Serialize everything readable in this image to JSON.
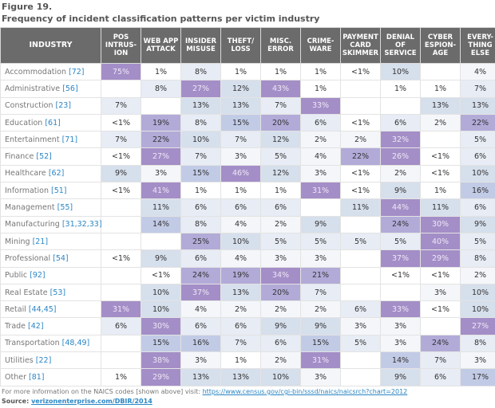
{
  "figure_label": "Figure 19.",
  "title": "Frequency of incident classification patterns per victim industry",
  "footnote_prefix": "For more information on the NAICS codes [shown above] visit: ",
  "footnote_link": "https://www.census.gov/cgi-bin/sssd/naics/naicsrch?chart=2012",
  "source_prefix": "Source: ",
  "source_link": "verizonenterprise.com/DBIR/2014",
  "colors": {
    "header": "#6b6b6b",
    "high": "#a48ec7",
    "mid": "#c2cbe6",
    "low": "#e7ecf5",
    "link": "#2b86c5"
  },
  "chart_data": {
    "type": "heatmap",
    "title": "Frequency of incident classification patterns per victim industry",
    "row_header": "INDUSTRY",
    "columns": [
      "POS INTRUS- ION",
      "WEB APP ATTACK",
      "INSIDER MISUSE",
      "THEFT/ LOSS",
      "MISC. ERROR",
      "CRIME- WARE",
      "PAYMENT CARD SKIMMER",
      "DENIAL OF SERVICE",
      "CYBER ESPION- AGE",
      "EVERY- THING ELSE"
    ],
    "rows": [
      {
        "industry": "Accommodation ",
        "code": "[72]",
        "values": [
          "75%",
          "1%",
          "8%",
          "1%",
          "1%",
          "1%",
          "<1%",
          "10%",
          "",
          "4%"
        ]
      },
      {
        "industry": "Administrative ",
        "code": "[56]",
        "values": [
          "",
          "8%",
          "27%",
          "12%",
          "43%",
          "1%",
          "",
          "1%",
          "1%",
          "7%"
        ]
      },
      {
        "industry": "Construction ",
        "code": "[23]",
        "values": [
          "7%",
          "",
          "13%",
          "13%",
          "7%",
          "33%",
          "",
          "",
          "13%",
          "13%"
        ]
      },
      {
        "industry": "Education ",
        "code": "[61]",
        "values": [
          "<1%",
          "19%",
          "8%",
          "15%",
          "20%",
          "6%",
          "<1%",
          "6%",
          "2%",
          "22%"
        ]
      },
      {
        "industry": "Entertainment ",
        "code": "[71]",
        "values": [
          "7%",
          "22%",
          "10%",
          "7%",
          "12%",
          "2%",
          "2%",
          "32%",
          "",
          "5%"
        ]
      },
      {
        "industry": "Finance ",
        "code": "[52]",
        "values": [
          "<1%",
          "27%",
          "7%",
          "3%",
          "5%",
          "4%",
          "22%",
          "26%",
          "<1%",
          "6%"
        ]
      },
      {
        "industry": "Healthcare ",
        "code": "[62]",
        "values": [
          "9%",
          "3%",
          "15%",
          "46%",
          "12%",
          "3%",
          "<1%",
          "2%",
          "<1%",
          "10%"
        ]
      },
      {
        "industry": "Information ",
        "code": "[51]",
        "values": [
          "<1%",
          "41%",
          "1%",
          "1%",
          "1%",
          "31%",
          "<1%",
          "9%",
          "1%",
          "16%"
        ]
      },
      {
        "industry": "Management ",
        "code": "[55]",
        "values": [
          "",
          "11%",
          "6%",
          "6%",
          "6%",
          "",
          "11%",
          "44%",
          "11%",
          "6%"
        ]
      },
      {
        "industry": "Manufacturing ",
        "code": "[31,32,33]",
        "values": [
          "",
          "14%",
          "8%",
          "4%",
          "2%",
          "9%",
          "",
          "24%",
          "30%",
          "9%"
        ]
      },
      {
        "industry": "Mining ",
        "code": "[21]",
        "values": [
          "",
          "",
          "25%",
          "10%",
          "5%",
          "5%",
          "5%",
          "5%",
          "40%",
          "5%"
        ]
      },
      {
        "industry": "Professional ",
        "code": "[54]",
        "values": [
          "<1%",
          "9%",
          "6%",
          "4%",
          "3%",
          "3%",
          "",
          "37%",
          "29%",
          "8%"
        ]
      },
      {
        "industry": "Public ",
        "code": "[92]",
        "values": [
          "",
          "<1%",
          "24%",
          "19%",
          "34%",
          "21%",
          "",
          "<1%",
          "<1%",
          "2%"
        ]
      },
      {
        "industry": "Real Estate ",
        "code": "[53]",
        "values": [
          "",
          "10%",
          "37%",
          "13%",
          "20%",
          "7%",
          "",
          "",
          "3%",
          "10%"
        ]
      },
      {
        "industry": "Retail ",
        "code": "[44,45]",
        "values": [
          "31%",
          "10%",
          "4%",
          "2%",
          "2%",
          "2%",
          "6%",
          "33%",
          "<1%",
          "10%"
        ]
      },
      {
        "industry": "Trade ",
        "code": "[42]",
        "values": [
          "6%",
          "30%",
          "6%",
          "6%",
          "9%",
          "9%",
          "3%",
          "3%",
          "",
          "27%"
        ]
      },
      {
        "industry": "Transportation ",
        "code": "[48,49]",
        "values": [
          "",
          "15%",
          "16%",
          "7%",
          "6%",
          "15%",
          "5%",
          "3%",
          "24%",
          "8%"
        ]
      },
      {
        "industry": "Utilities ",
        "code": "[22]",
        "values": [
          "",
          "38%",
          "3%",
          "1%",
          "2%",
          "31%",
          "",
          "14%",
          "7%",
          "3%"
        ]
      },
      {
        "industry": "Other ",
        "code": "[81]",
        "values": [
          "1%",
          "29%",
          "13%",
          "13%",
          "10%",
          "3%",
          "",
          "9%",
          "6%",
          "17%"
        ]
      }
    ]
  }
}
